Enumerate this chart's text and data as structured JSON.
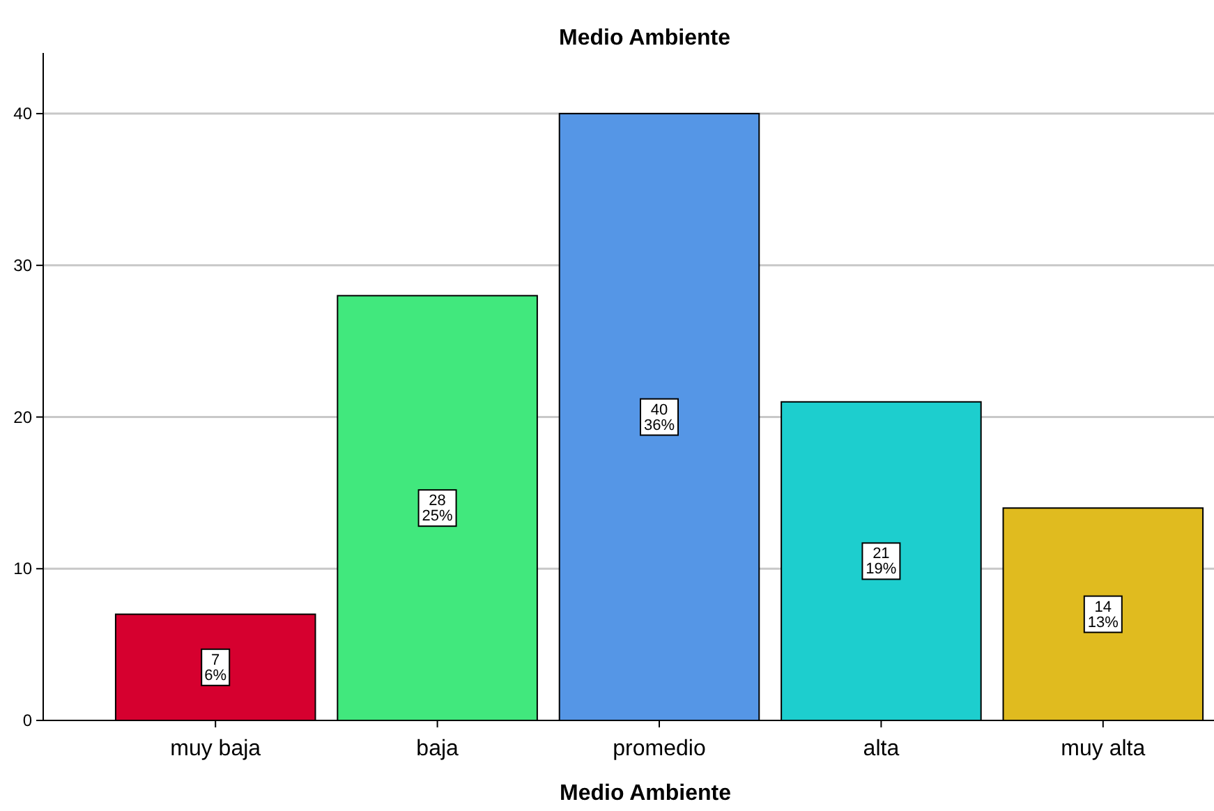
{
  "chart_data": {
    "type": "bar",
    "title": "Medio Ambiente",
    "xlabel": "Medio Ambiente",
    "categories": [
      "muy baja",
      "baja",
      "promedio",
      "alta",
      "muy alta"
    ],
    "values": [
      7,
      28,
      40,
      21,
      14
    ],
    "colors": [
      "#d6002f",
      "#41e87d",
      "#5596e6",
      "#1dcece",
      "#e0bb1f"
    ],
    "value_labels": [
      "7\n6%",
      "28\n25%",
      "40\n36%",
      "21\n19%",
      "14\n13%"
    ],
    "ylim": [
      0,
      44
    ],
    "yticks": [
      0,
      10,
      20,
      30,
      40
    ],
    "grid": "y"
  }
}
